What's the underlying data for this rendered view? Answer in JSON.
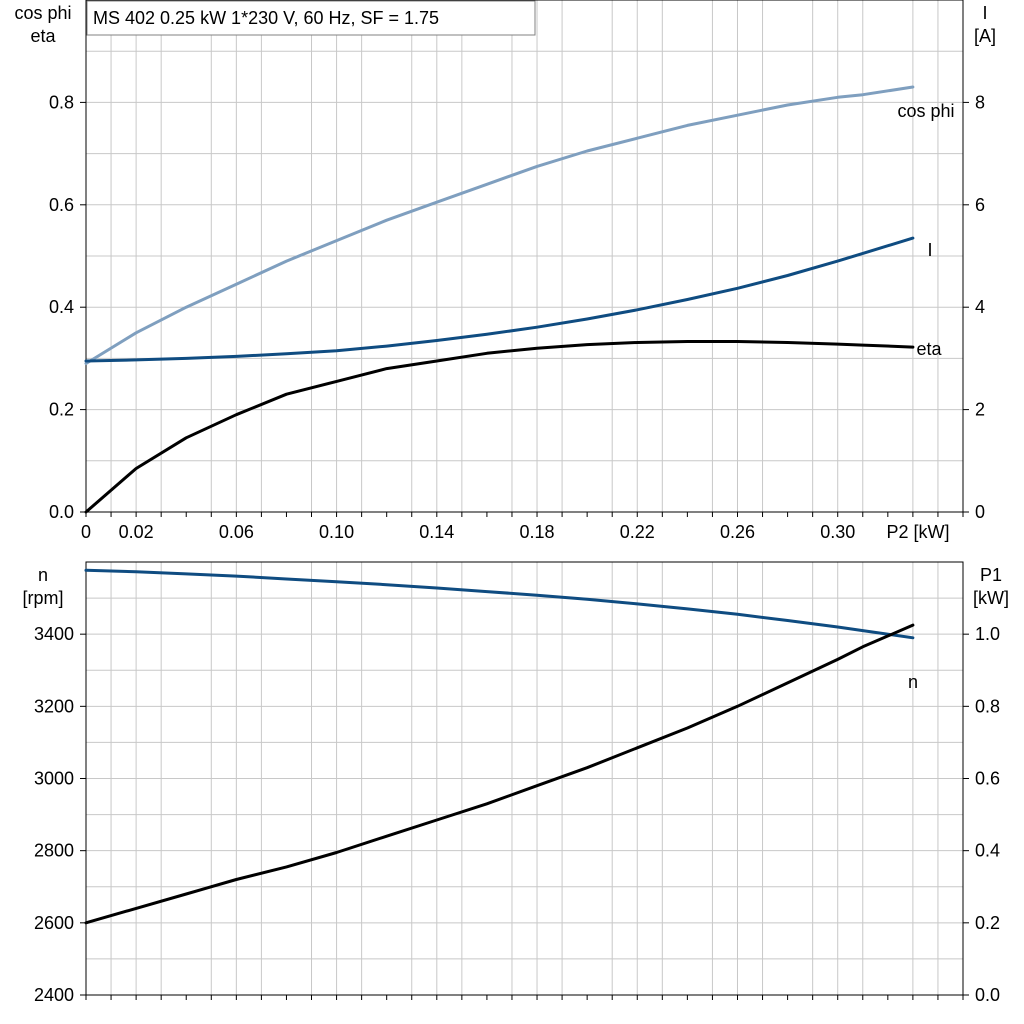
{
  "colors": {
    "cosphi": "#7f9fbf",
    "current": "#0f4c81",
    "eta": "#000000",
    "speed": "#0f4c81",
    "p1": "#000000",
    "grid": "#c8c8c8"
  },
  "chart_data": [
    {
      "type": "line",
      "title": "MS 402   0.25 kW   1*230 V, 60 Hz, SF = 1.75",
      "xlabel": "P2 [kW]",
      "xlim": [
        0,
        0.35
      ],
      "x_ticks": [
        0,
        0.02,
        0.06,
        0.1,
        0.14,
        0.18,
        0.22,
        0.26,
        0.3
      ],
      "x_tick_labels": [
        "0",
        "0.02",
        "0.06",
        "0.10",
        "0.14",
        "0.18",
        "0.22",
        "0.26",
        "0.30"
      ],
      "ylabel_left": [
        "cos phi",
        "eta"
      ],
      "ylim_left": [
        0,
        1.0
      ],
      "y_ticks_left": [
        0.0,
        0.2,
        0.4,
        0.6,
        0.8
      ],
      "y_tick_labels_left": [
        "0.0",
        "0.2",
        "0.4",
        "0.6",
        "0.8"
      ],
      "ylabel_right": [
        "I",
        "[A]"
      ],
      "ylim_right": [
        0,
        10
      ],
      "y_ticks_right": [
        0,
        2,
        4,
        6,
        8
      ],
      "y_tick_labels_right": [
        "0",
        "2",
        "4",
        "6",
        "8"
      ],
      "grid": true,
      "series": [
        {
          "name": "cos phi",
          "axis": "left",
          "color_key": "cosphi",
          "x": [
            0,
            0.02,
            0.04,
            0.06,
            0.08,
            0.1,
            0.12,
            0.14,
            0.16,
            0.18,
            0.2,
            0.22,
            0.24,
            0.26,
            0.28,
            0.3,
            0.31,
            0.33
          ],
          "y": [
            0.29,
            0.35,
            0.4,
            0.445,
            0.49,
            0.53,
            0.57,
            0.605,
            0.64,
            0.675,
            0.705,
            0.73,
            0.755,
            0.775,
            0.795,
            0.81,
            0.815,
            0.83
          ]
        },
        {
          "name": "I",
          "axis": "right",
          "color_key": "current",
          "x": [
            0,
            0.02,
            0.04,
            0.06,
            0.08,
            0.1,
            0.12,
            0.14,
            0.16,
            0.18,
            0.2,
            0.22,
            0.24,
            0.26,
            0.28,
            0.3,
            0.31,
            0.33
          ],
          "y": [
            2.95,
            2.97,
            3.0,
            3.04,
            3.09,
            3.15,
            3.24,
            3.35,
            3.47,
            3.61,
            3.77,
            3.95,
            4.15,
            4.37,
            4.62,
            4.9,
            5.05,
            5.35
          ]
        },
        {
          "name": "eta",
          "axis": "left",
          "color_key": "eta",
          "x": [
            0,
            0.02,
            0.04,
            0.06,
            0.08,
            0.1,
            0.12,
            0.14,
            0.16,
            0.18,
            0.2,
            0.22,
            0.24,
            0.26,
            0.28,
            0.3,
            0.31,
            0.33
          ],
          "y": [
            0.0,
            0.085,
            0.145,
            0.19,
            0.23,
            0.255,
            0.28,
            0.295,
            0.31,
            0.32,
            0.327,
            0.331,
            0.333,
            0.333,
            0.331,
            0.328,
            0.326,
            0.322
          ]
        }
      ],
      "series_labels": [
        "cos phi",
        "I",
        "eta"
      ]
    },
    {
      "type": "line",
      "xlim": [
        0,
        0.35
      ],
      "ylabel_left": [
        "n",
        "[rpm]"
      ],
      "ylim_left": [
        2400,
        3600
      ],
      "y_ticks_left": [
        2400,
        2600,
        2800,
        3000,
        3200,
        3400
      ],
      "y_tick_labels_left": [
        "2400",
        "2600",
        "2800",
        "3000",
        "3200",
        "3400"
      ],
      "ylabel_right": [
        "P1",
        "[kW]"
      ],
      "ylim_right": [
        0,
        1.2
      ],
      "y_ticks_right": [
        0.0,
        0.2,
        0.4,
        0.6,
        0.8,
        1.0
      ],
      "y_tick_labels_right": [
        "0.0",
        "0.2",
        "0.4",
        "0.6",
        "0.8",
        "1.0"
      ],
      "grid": true,
      "series": [
        {
          "name": "n",
          "axis": "left",
          "color_key": "speed",
          "x": [
            0,
            0.02,
            0.04,
            0.06,
            0.08,
            0.1,
            0.12,
            0.14,
            0.16,
            0.18,
            0.2,
            0.22,
            0.24,
            0.26,
            0.28,
            0.3,
            0.31,
            0.33
          ],
          "y": [
            3577,
            3573,
            3567,
            3561,
            3553,
            3545,
            3537,
            3528,
            3518,
            3508,
            3497,
            3484,
            3470,
            3455,
            3438,
            3420,
            3410,
            3390
          ]
        },
        {
          "name": "P1",
          "axis": "right",
          "color_key": "p1",
          "x": [
            0,
            0.02,
            0.04,
            0.06,
            0.08,
            0.1,
            0.12,
            0.14,
            0.16,
            0.18,
            0.2,
            0.22,
            0.24,
            0.26,
            0.28,
            0.3,
            0.31,
            0.33
          ],
          "y": [
            0.2,
            0.24,
            0.28,
            0.32,
            0.355,
            0.395,
            0.44,
            0.485,
            0.53,
            0.58,
            0.63,
            0.685,
            0.74,
            0.8,
            0.865,
            0.93,
            0.965,
            1.025
          ]
        }
      ],
      "series_labels": [
        "n"
      ]
    }
  ]
}
